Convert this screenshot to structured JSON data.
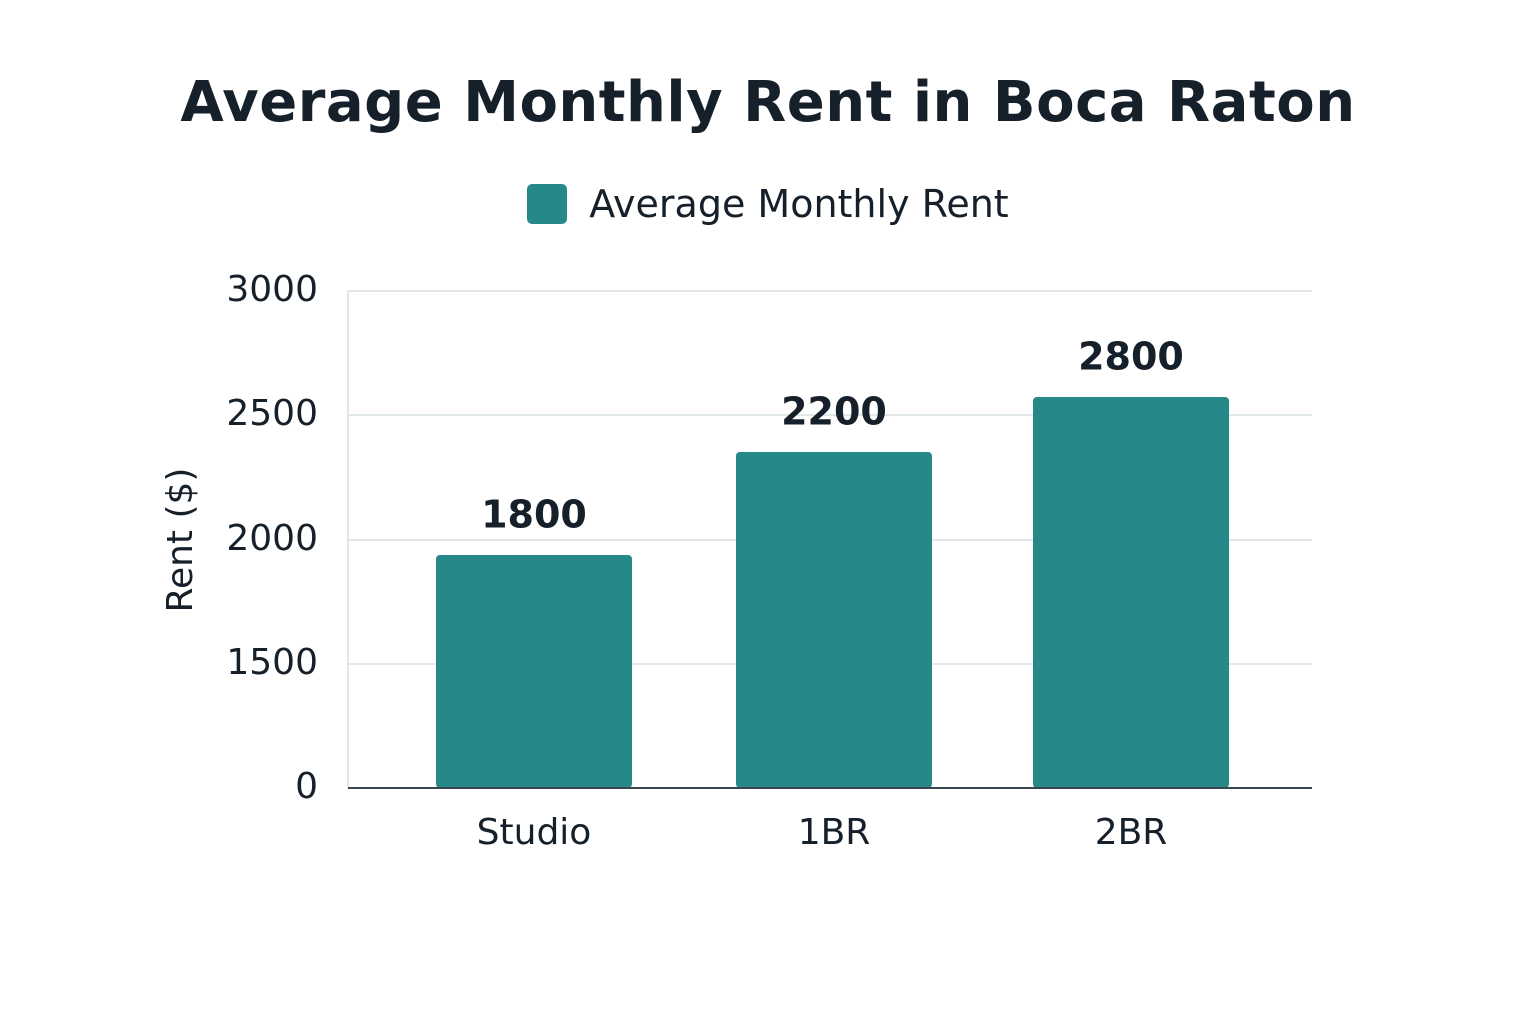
{
  "chart_data": {
    "type": "bar",
    "title": "Average Monthly Rent in Boca Raton",
    "xlabel": "",
    "ylabel": "Rent ($)",
    "categories": [
      "Studio",
      "1BR",
      "2BR"
    ],
    "series": [
      {
        "name": "Average Monthly Rent",
        "values": [
          1800,
          2200,
          2800
        ]
      }
    ],
    "data_labels": [
      "1800",
      "2200",
      "2800"
    ],
    "y_ticks": [
      "0",
      "1500",
      "2000",
      "2500",
      "3000"
    ],
    "grid": true,
    "legend": "top-center",
    "colors": {
      "bar": "#268888",
      "grid": "#d6e0e0",
      "axis": "#3a4750"
    }
  }
}
